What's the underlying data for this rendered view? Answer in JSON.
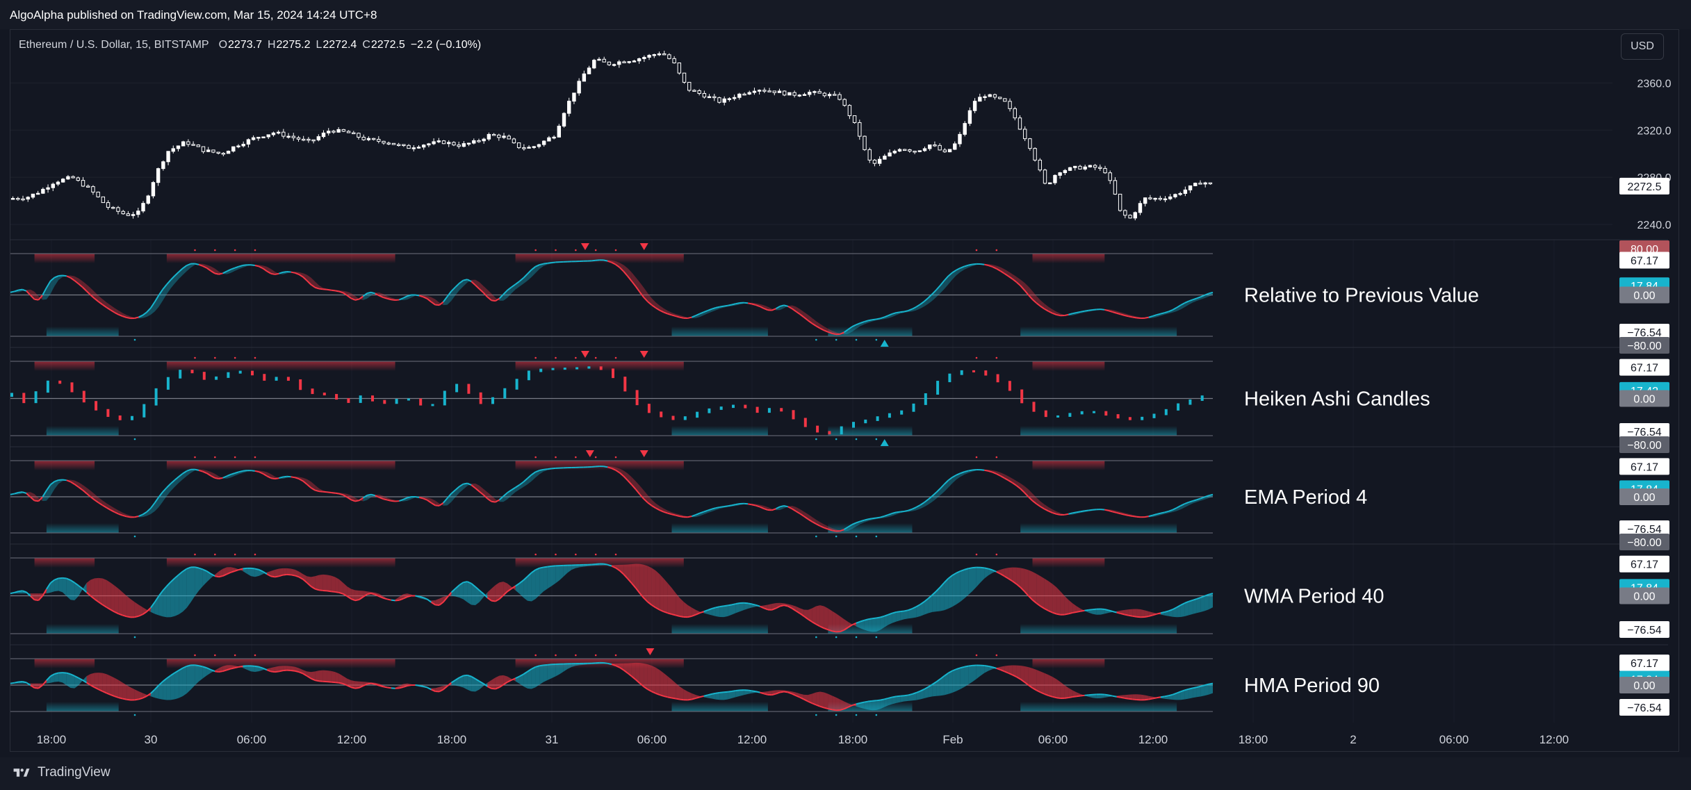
{
  "header": {
    "publisher": "AlgoAlpha published on TradingView.com, Mar 15, 2024 14:24 UTC+8",
    "symbol_title": "Ethereum / U.S. Dollar, 15, BITSTAMP",
    "ohlc": [
      {
        "label": "O",
        "value": "2273.7"
      },
      {
        "label": "H",
        "value": "2275.2"
      },
      {
        "label": "L",
        "value": "2272.4"
      },
      {
        "label": "C",
        "value": "2272.5"
      }
    ],
    "change": "−2.2 (−0.10%)"
  },
  "currency_button": "USD",
  "footer": {
    "brand": "TradingView"
  },
  "colors": {
    "background": "#131722",
    "bull": "#18b4cd",
    "bear": "#f23645",
    "candle": "#ffffff",
    "grid": "#2a2e39",
    "text": "#d1d4dc"
  },
  "chart_data": [
    {
      "type": "candlestick",
      "title": "Ethereum / U.S. Dollar, 15, BITSTAMP",
      "ylim": [
        2230,
        2395
      ],
      "y_ticks": [
        "2360.0",
        "2320.0",
        "2280.0",
        "2240.0"
      ],
      "last_price_label": "2272.5",
      "x_ticks": [
        "18:00",
        "30",
        "06:00",
        "12:00",
        "18:00",
        "31",
        "06:00",
        "12:00",
        "18:00",
        "Feb",
        "06:00",
        "12:00",
        "18:00",
        "2",
        "06:00",
        "12:00"
      ],
      "close_path": [
        [
          0,
          2262
        ],
        [
          0.014,
          2263
        ],
        [
          0.025,
          2268
        ],
        [
          0.037,
          2276
        ],
        [
          0.052,
          2280
        ],
        [
          0.067,
          2270
        ],
        [
          0.082,
          2255
        ],
        [
          0.098,
          2248
        ],
        [
          0.108,
          2250
        ],
        [
          0.115,
          2262
        ],
        [
          0.124,
          2285
        ],
        [
          0.133,
          2302
        ],
        [
          0.148,
          2310
        ],
        [
          0.163,
          2303
        ],
        [
          0.178,
          2300
        ],
        [
          0.193,
          2308
        ],
        [
          0.208,
          2314
        ],
        [
          0.223,
          2318
        ],
        [
          0.238,
          2314
        ],
        [
          0.253,
          2310
        ],
        [
          0.27,
          2320
        ],
        [
          0.285,
          2318
        ],
        [
          0.3,
          2312
        ],
        [
          0.318,
          2310
        ],
        [
          0.335,
          2305
        ],
        [
          0.35,
          2308
        ],
        [
          0.365,
          2310
        ],
        [
          0.38,
          2307
        ],
        [
          0.393,
          2310
        ],
        [
          0.405,
          2316
        ],
        [
          0.418,
          2314
        ],
        [
          0.428,
          2306
        ],
        [
          0.44,
          2305
        ],
        [
          0.45,
          2310
        ],
        [
          0.46,
          2316
        ],
        [
          0.468,
          2336
        ],
        [
          0.476,
          2352
        ],
        [
          0.485,
          2368
        ],
        [
          0.494,
          2380
        ],
        [
          0.505,
          2376
        ],
        [
          0.515,
          2378
        ],
        [
          0.528,
          2380
        ],
        [
          0.54,
          2383
        ],
        [
          0.55,
          2386
        ],
        [
          0.56,
          2378
        ],
        [
          0.566,
          2366
        ],
        [
          0.572,
          2355
        ],
        [
          0.585,
          2350
        ],
        [
          0.6,
          2344
        ],
        [
          0.615,
          2350
        ],
        [
          0.63,
          2355
        ],
        [
          0.645,
          2353
        ],
        [
          0.66,
          2350
        ],
        [
          0.675,
          2352
        ],
        [
          0.69,
          2350
        ],
        [
          0.7,
          2348
        ],
        [
          0.708,
          2335
        ],
        [
          0.716,
          2320
        ],
        [
          0.722,
          2302
        ],
        [
          0.728,
          2290
        ],
        [
          0.738,
          2297
        ],
        [
          0.752,
          2305
        ],
        [
          0.765,
          2302
        ],
        [
          0.778,
          2308
        ],
        [
          0.79,
          2300
        ],
        [
          0.8,
          2310
        ],
        [
          0.808,
          2330
        ],
        [
          0.815,
          2345
        ],
        [
          0.824,
          2350
        ],
        [
          0.832,
          2347
        ],
        [
          0.84,
          2344
        ],
        [
          0.848,
          2332
        ],
        [
          0.855,
          2318
        ],
        [
          0.862,
          2305
        ],
        [
          0.868,
          2290
        ],
        [
          0.875,
          2272
        ],
        [
          0.885,
          2285
        ],
        [
          0.9,
          2288
        ],
        [
          0.915,
          2289
        ],
        [
          0.925,
          2285
        ],
        [
          0.932,
          2270
        ],
        [
          0.938,
          2250
        ],
        [
          0.946,
          2245
        ],
        [
          0.958,
          2262
        ],
        [
          0.97,
          2262
        ],
        [
          0.982,
          2264
        ],
        [
          0.994,
          2270
        ],
        [
          1.006,
          2276
        ],
        [
          1.012,
          2275
        ],
        [
          1.016,
          2272.5
        ]
      ]
    },
    {
      "type": "line",
      "title": "Relative to Previous Value",
      "ylim": [
        -80,
        80
      ],
      "levels": {
        "upper": "80.00",
        "lower": "−80.00"
      },
      "labels": {
        "top": "67.17",
        "value": "17.84",
        "zero": "0.00",
        "bottom": "−76.54"
      },
      "series_y": [
        5,
        10,
        -10,
        30,
        37,
        20,
        -5,
        -25,
        -40,
        -45,
        -30,
        10,
        40,
        60,
        55,
        40,
        50,
        58,
        55,
        40,
        45,
        38,
        15,
        10,
        5,
        -10,
        5,
        -5,
        -10,
        0,
        -5,
        -20,
        10,
        30,
        10,
        -12,
        10,
        30,
        55,
        62,
        64,
        65,
        66,
        67,
        55,
        25,
        -10,
        -30,
        -40,
        -45,
        -35,
        -25,
        -20,
        -15,
        -20,
        -30,
        -20,
        -35,
        -55,
        -70,
        -76,
        -60,
        -50,
        -45,
        -35,
        -30,
        -15,
        10,
        40,
        55,
        60,
        55,
        40,
        20,
        -10,
        -30,
        -40,
        -35,
        -30,
        -28,
        -35,
        -42,
        -45,
        -38,
        -30,
        -15,
        -5,
        5
      ],
      "markers": {
        "down": [
          0.478,
          0.527
        ],
        "up": [
          0.727
        ]
      }
    },
    {
      "type": "bar",
      "title": "Heiken Ashi Candles",
      "ylim": [
        -80,
        80
      ],
      "levels": {
        "upper": "80.00",
        "lower": "−80.00"
      },
      "labels": {
        "top": "67.17",
        "value": "17.42",
        "zero": "0.00",
        "bottom": "−76.54"
      },
      "series_y": [
        5,
        10,
        -10,
        30,
        37,
        20,
        -5,
        -25,
        -40,
        -45,
        -30,
        10,
        40,
        60,
        55,
        40,
        50,
        58,
        55,
        40,
        45,
        38,
        15,
        10,
        5,
        -10,
        5,
        -5,
        -10,
        0,
        -5,
        -20,
        10,
        30,
        10,
        -12,
        10,
        30,
        55,
        62,
        64,
        65,
        66,
        67,
        55,
        25,
        -10,
        -30,
        -40,
        -45,
        -35,
        -25,
        -20,
        -15,
        -20,
        -30,
        -20,
        -35,
        -55,
        -70,
        -76,
        -60,
        -50,
        -45,
        -35,
        -30,
        -15,
        10,
        40,
        55,
        60,
        55,
        40,
        20,
        -10,
        -30,
        -40,
        -35,
        -30,
        -28,
        -35,
        -42,
        -45,
        -38,
        -30,
        -15,
        -5,
        5
      ],
      "markers": {
        "down": [
          0.478,
          0.527
        ],
        "up": [
          0.727
        ]
      }
    },
    {
      "type": "line",
      "title": "EMA Period 4",
      "ylim": [
        -80,
        80
      ],
      "levels": {
        "upper": "80.00",
        "lower": "−80.00"
      },
      "labels": {
        "top": "67.17",
        "value": "17.84",
        "zero": "0.00",
        "bottom": "−76.54"
      },
      "series_y": [
        5,
        10,
        -10,
        30,
        37,
        20,
        -5,
        -25,
        -40,
        -45,
        -30,
        10,
        40,
        60,
        55,
        40,
        50,
        58,
        55,
        40,
        45,
        38,
        15,
        10,
        5,
        -10,
        5,
        -5,
        -10,
        0,
        -5,
        -20,
        10,
        30,
        10,
        -12,
        10,
        30,
        55,
        62,
        64,
        65,
        66,
        67,
        55,
        25,
        -10,
        -30,
        -40,
        -45,
        -35,
        -25,
        -20,
        -15,
        -20,
        -30,
        -20,
        -35,
        -55,
        -70,
        -76,
        -60,
        -50,
        -45,
        -35,
        -30,
        -15,
        10,
        40,
        55,
        60,
        55,
        40,
        20,
        -10,
        -30,
        -40,
        -35,
        -30,
        -28,
        -35,
        -42,
        -45,
        -38,
        -30,
        -15,
        -5,
        5
      ],
      "markers": {
        "down": [
          0.482,
          0.527
        ],
        "up": []
      }
    },
    {
      "type": "area",
      "title": "WMA Period 40",
      "ylim": [
        -80,
        80
      ],
      "levels": {
        "upper": "80.00",
        "lower": "−80.00"
      },
      "labels": {
        "top": "67.17",
        "value": "17.84",
        "zero": "0.00",
        "bottom": "−76.54"
      },
      "series_y": [
        5,
        10,
        -10,
        30,
        37,
        20,
        -5,
        -25,
        -40,
        -45,
        -30,
        10,
        40,
        60,
        55,
        40,
        50,
        58,
        55,
        40,
        45,
        38,
        15,
        10,
        5,
        -10,
        5,
        -5,
        -10,
        0,
        -5,
        -20,
        10,
        30,
        10,
        -12,
        10,
        30,
        55,
        62,
        64,
        65,
        66,
        67,
        55,
        25,
        -10,
        -30,
        -40,
        -45,
        -35,
        -25,
        -20,
        -15,
        -20,
        -30,
        -20,
        -35,
        -55,
        -70,
        -76,
        -60,
        -50,
        -45,
        -35,
        -30,
        -15,
        10,
        40,
        55,
        60,
        55,
        40,
        20,
        -10,
        -30,
        -40,
        -35,
        -30,
        -28,
        -35,
        -42,
        -45,
        -38,
        -30,
        -15,
        -5,
        5
      ],
      "markers": {
        "down": [],
        "up": []
      }
    },
    {
      "type": "area",
      "title": "HMA Period 90",
      "ylim": [
        -80,
        80
      ],
      "levels": {
        "upper": "80.00",
        "lower": "−80.00"
      },
      "labels": {
        "top": "67.17",
        "value": "17.84",
        "zero": "0.00",
        "bottom": "−76.54"
      },
      "series_y": [
        5,
        10,
        -10,
        30,
        37,
        20,
        -5,
        -25,
        -40,
        -45,
        -30,
        10,
        40,
        60,
        55,
        40,
        50,
        58,
        55,
        40,
        45,
        38,
        15,
        10,
        5,
        -10,
        5,
        -5,
        -10,
        0,
        -5,
        -20,
        10,
        30,
        10,
        -12,
        10,
        30,
        55,
        62,
        64,
        65,
        66,
        67,
        55,
        25,
        -10,
        -30,
        -40,
        -45,
        -35,
        -25,
        -20,
        -15,
        -20,
        -30,
        -20,
        -35,
        -55,
        -70,
        -76,
        -60,
        -50,
        -45,
        -35,
        -30,
        -15,
        10,
        40,
        55,
        60,
        55,
        40,
        20,
        -10,
        -30,
        -40,
        -35,
        -30,
        -28,
        -35,
        -42,
        -45,
        -38,
        -30,
        -15,
        -5,
        5
      ],
      "markers": {
        "down": [
          0.532
        ],
        "up": []
      }
    }
  ]
}
